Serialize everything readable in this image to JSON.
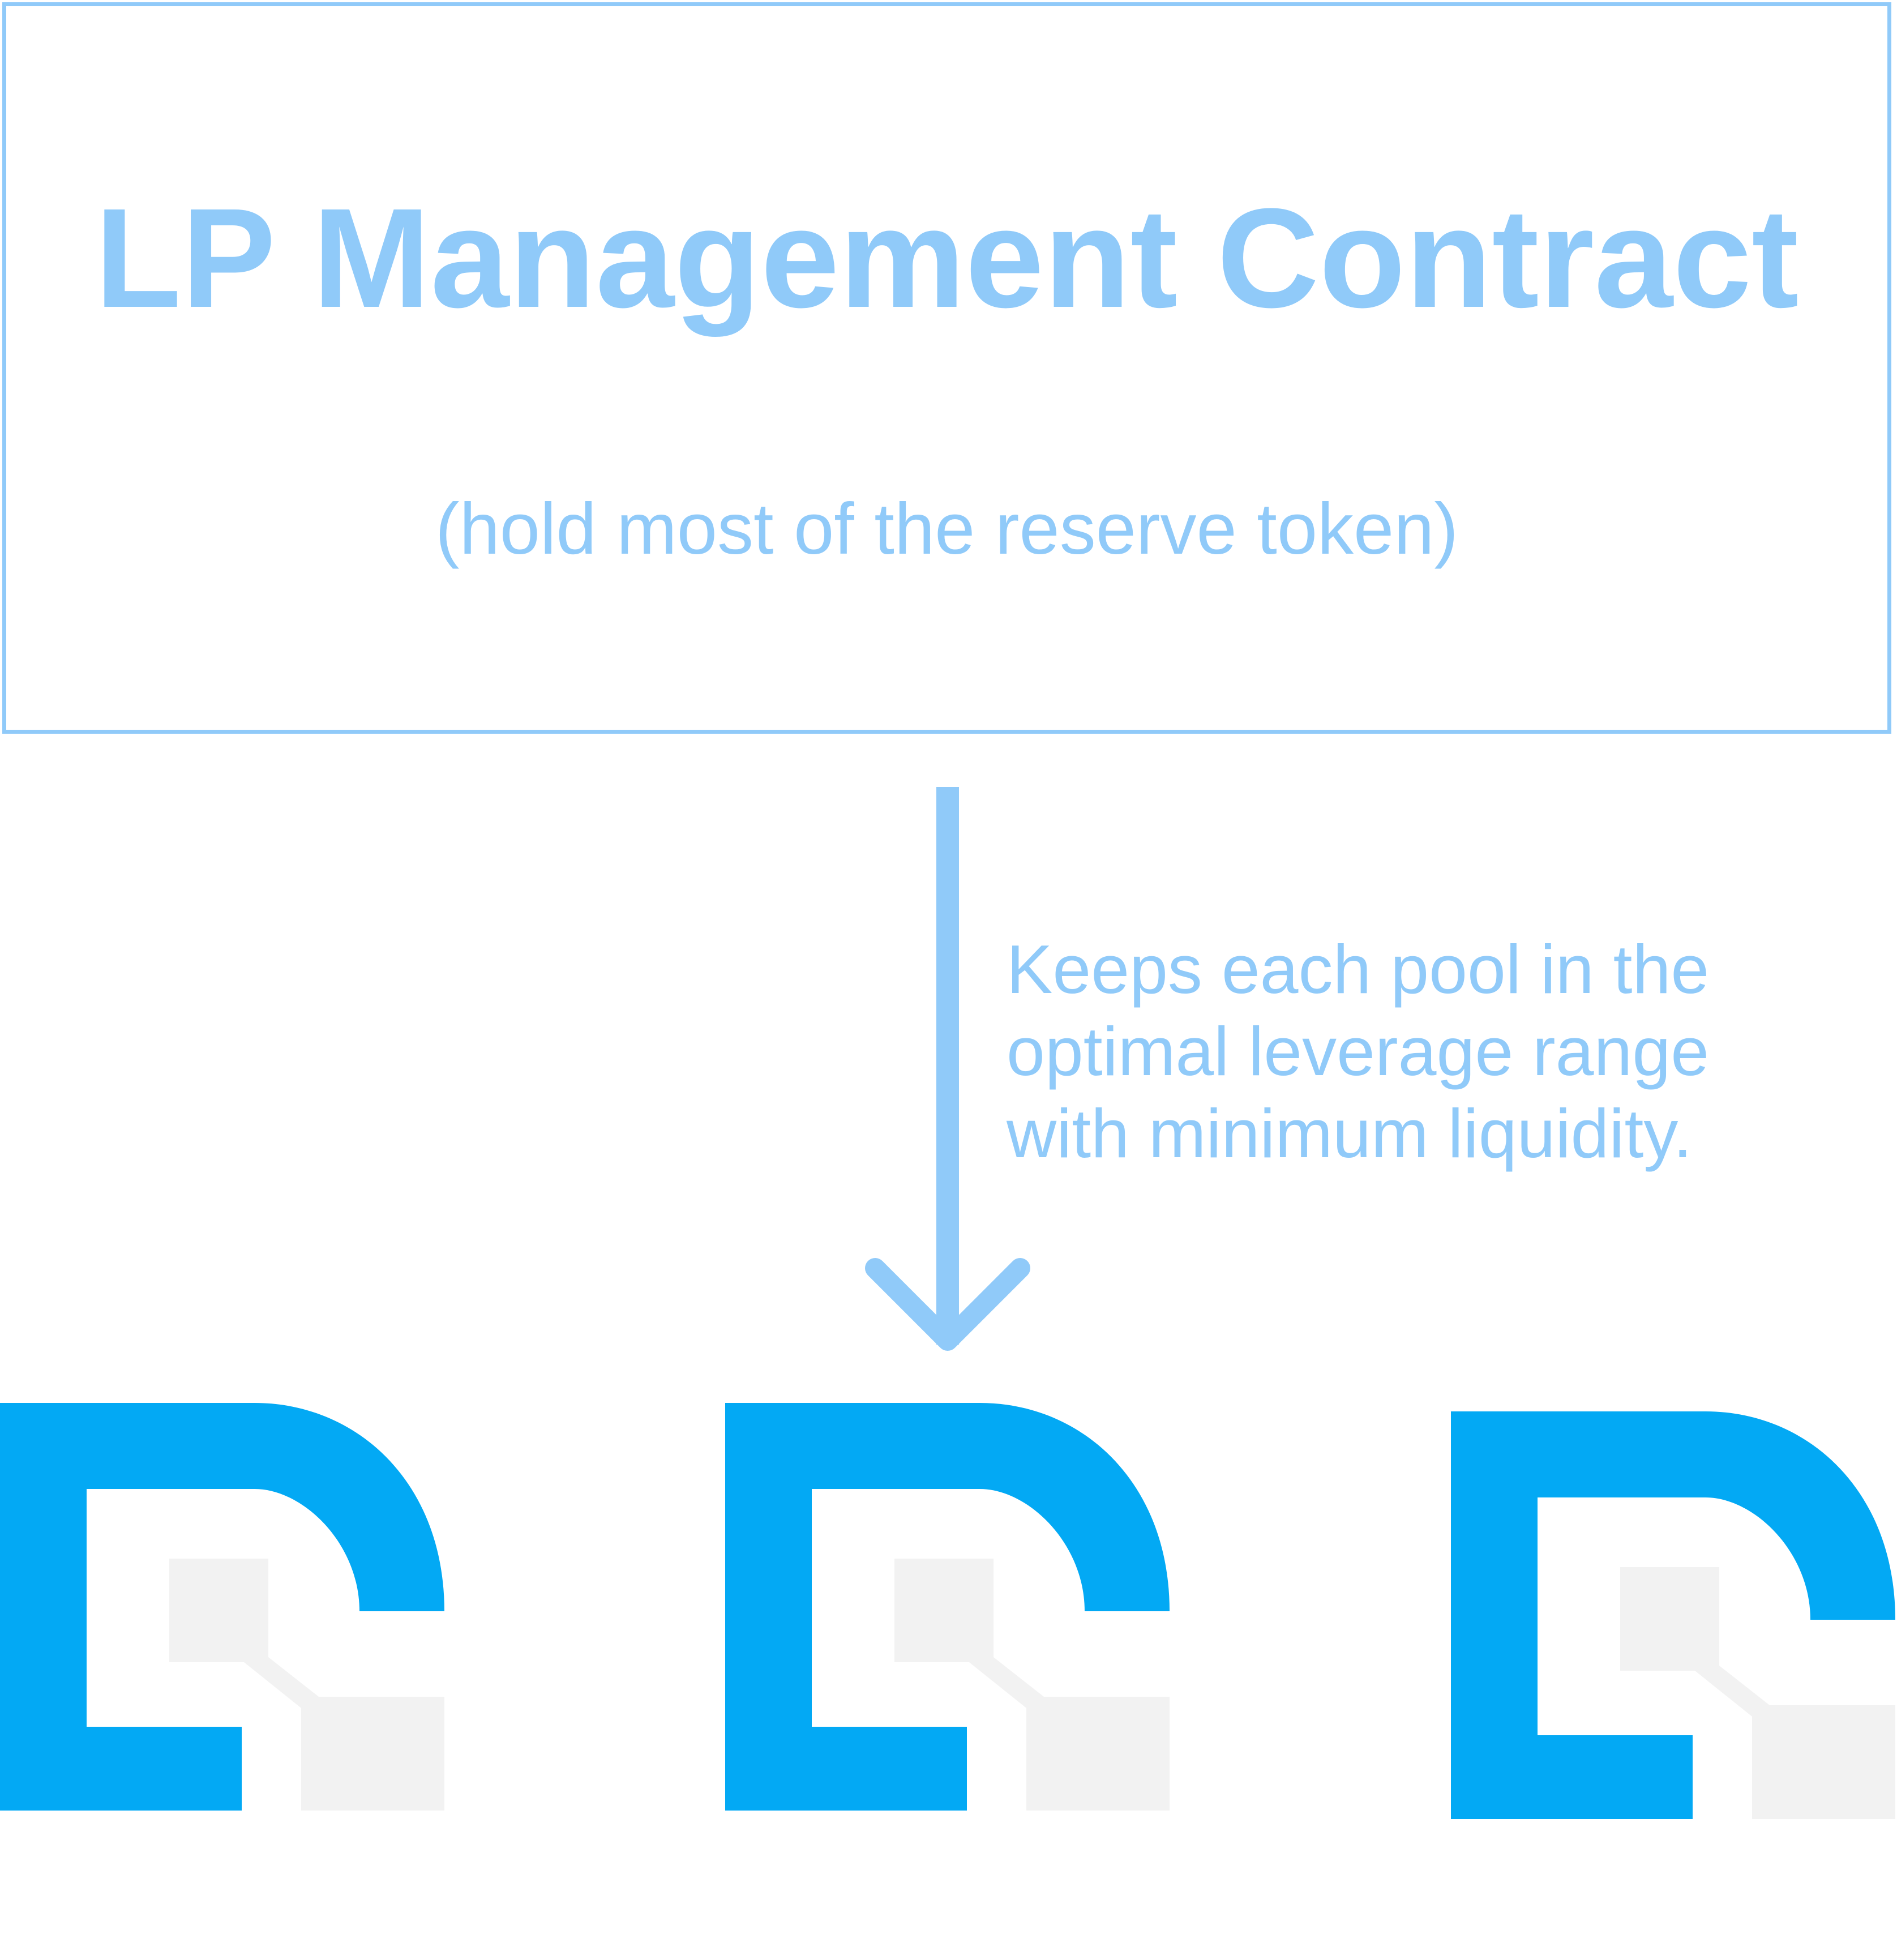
{
  "contract": {
    "title": "LP Management Contract",
    "subtitle": "(hold most of the reserve token)"
  },
  "flow": {
    "description_lines": [
      "Keeps each pool in the",
      "optimal leverage range",
      "with minimum liquidity."
    ]
  },
  "pools": [
    {
      "icon": "pool-logo-icon"
    },
    {
      "icon": "pool-logo-icon"
    },
    {
      "icon": "pool-logo-icon"
    }
  ],
  "colors": {
    "accent_light": "#90CAF9",
    "logo_blue": "#03A9F4",
    "logo_grey": "#F2F2F2"
  }
}
